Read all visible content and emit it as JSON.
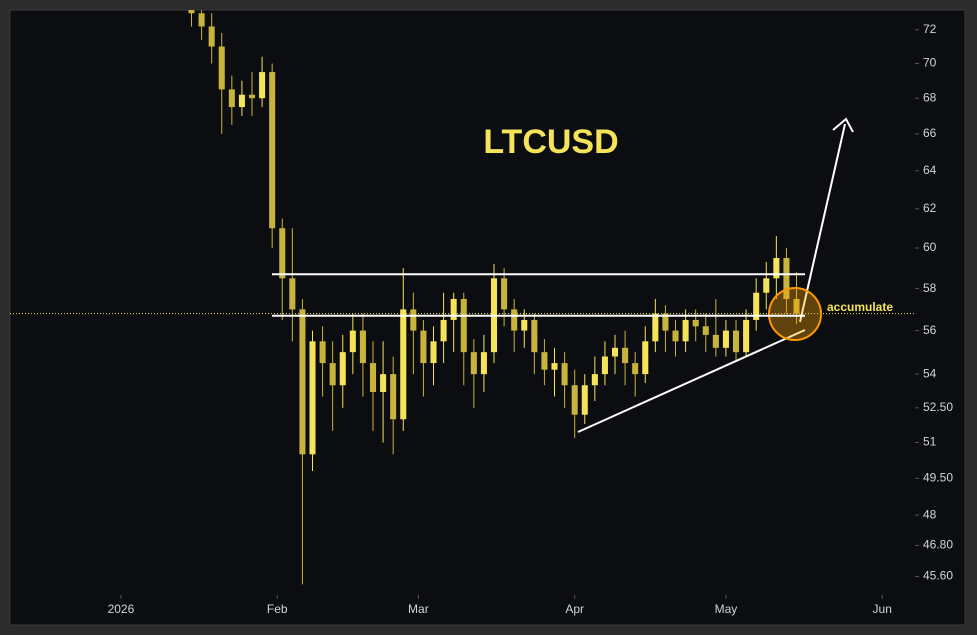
{
  "chart_data": {
    "type": "candlestick",
    "title": "LTCUSD",
    "annotation": "accumulate",
    "log": true,
    "x": [
      14,
      16,
      18,
      20,
      22,
      24,
      26,
      28,
      30,
      32,
      34,
      36,
      38,
      40,
      42,
      44,
      46,
      48,
      50,
      52,
      54,
      56,
      58,
      60,
      62,
      64,
      66,
      68,
      70,
      72,
      74,
      76,
      78,
      80,
      82,
      84,
      86,
      88,
      90,
      92,
      94,
      96,
      98,
      100,
      102,
      104,
      106,
      108,
      110,
      112,
      114,
      116,
      118,
      120,
      122,
      124,
      126,
      128,
      130,
      132,
      134
    ],
    "open": [
      73.5,
      73.0,
      72.2,
      71.0,
      68.5,
      67.5,
      68.2,
      68.0,
      69.5,
      61.0,
      58.5,
      57.0,
      50.5,
      55.5,
      54.5,
      53.5,
      55.0,
      56.0,
      54.5,
      53.2,
      54.0,
      52.0,
      57.0,
      56.0,
      54.5,
      55.5,
      56.5,
      57.5,
      55.0,
      54.0,
      55.0,
      58.5,
      57.0,
      56.0,
      56.5,
      55.0,
      54.2,
      54.5,
      53.5,
      52.2,
      53.5,
      54.0,
      54.8,
      55.2,
      54.5,
      54.0,
      55.5,
      56.8,
      56.0,
      55.5,
      56.5,
      56.2,
      55.8,
      55.2,
      56.0,
      55.0,
      56.5,
      57.8,
      58.5,
      59.5,
      57.5
    ],
    "high": [
      74.3,
      73.8,
      73.0,
      71.8,
      69.3,
      69.0,
      69.5,
      70.4,
      70.0,
      61.5,
      61.0,
      57.5,
      56.0,
      56.2,
      55.5,
      55.8,
      56.8,
      56.8,
      55.5,
      55.5,
      54.8,
      59.0,
      57.8,
      56.5,
      56.2,
      57.8,
      57.8,
      57.8,
      55.6,
      55.8,
      59.2,
      59.0,
      57.5,
      57.0,
      56.8,
      55.6,
      55.2,
      55.0,
      54.2,
      54.0,
      54.8,
      55.5,
      55.8,
      56.0,
      55.0,
      56.2,
      57.5,
      57.2,
      56.5,
      57.0,
      57.0,
      56.8,
      57.5,
      56.5,
      56.5,
      57.0,
      58.5,
      59.3,
      60.6,
      60.0,
      58.8
    ],
    "low": [
      72.2,
      71.4,
      70.0,
      66.0,
      66.5,
      67.0,
      67.0,
      67.5,
      60.0,
      56.5,
      55.5,
      45.3,
      49.8,
      53.0,
      51.5,
      52.5,
      54.0,
      53.0,
      51.5,
      51.0,
      50.5,
      51.5,
      54.0,
      53.0,
      53.5,
      54.5,
      55.0,
      53.5,
      52.5,
      53.2,
      54.5,
      56.2,
      55.0,
      55.2,
      54.0,
      53.5,
      53.0,
      52.5,
      51.2,
      51.8,
      52.8,
      53.5,
      54.0,
      53.5,
      53.0,
      53.6,
      55.0,
      55.0,
      54.8,
      55.0,
      55.5,
      55.0,
      54.8,
      54.8,
      54.6,
      54.8,
      56.0,
      57.0,
      57.5,
      56.8,
      56.3
    ],
    "close": [
      73.0,
      72.2,
      71.0,
      68.5,
      67.5,
      68.2,
      68.0,
      69.5,
      61.0,
      58.5,
      57.0,
      50.5,
      55.5,
      54.5,
      53.5,
      55.0,
      56.0,
      54.5,
      53.2,
      54.0,
      52.0,
      57.0,
      56.0,
      54.5,
      55.5,
      56.5,
      57.5,
      55.0,
      54.0,
      55.0,
      58.5,
      57.0,
      56.0,
      56.5,
      55.0,
      54.2,
      54.5,
      53.5,
      52.2,
      53.5,
      54.0,
      54.8,
      55.2,
      54.5,
      54.0,
      55.5,
      56.8,
      56.0,
      55.5,
      56.5,
      56.2,
      55.8,
      55.2,
      56.0,
      55.0,
      56.5,
      57.8,
      58.5,
      59.5,
      57.5,
      56.8
    ],
    "up_color": "#f5e35a",
    "down_color": "#c8b33c",
    "levels": [
      58.7,
      56.7
    ],
    "xlim": [
      -22,
      157.5
    ],
    "xticks": [
      {
        "value": 0,
        "label": "2026"
      },
      {
        "value": 31,
        "label": "Feb"
      },
      {
        "value": 59,
        "label": "Mar"
      },
      {
        "value": 90,
        "label": "Apr"
      },
      {
        "value": 120,
        "label": "May"
      },
      {
        "value": 151,
        "label": "Jun"
      }
    ],
    "ylim": [
      44.9,
      73.2
    ],
    "yticks": [
      72,
      70,
      68,
      66,
      64,
      62,
      60,
      58,
      56,
      54,
      {
        "value": 52.5,
        "label": "52.50"
      },
      51,
      {
        "value": 49.5,
        "label": "49.50"
      },
      48,
      {
        "value": 46.8,
        "label": "46.80"
      },
      {
        "value": 45.6,
        "label": "45.60"
      }
    ]
  }
}
